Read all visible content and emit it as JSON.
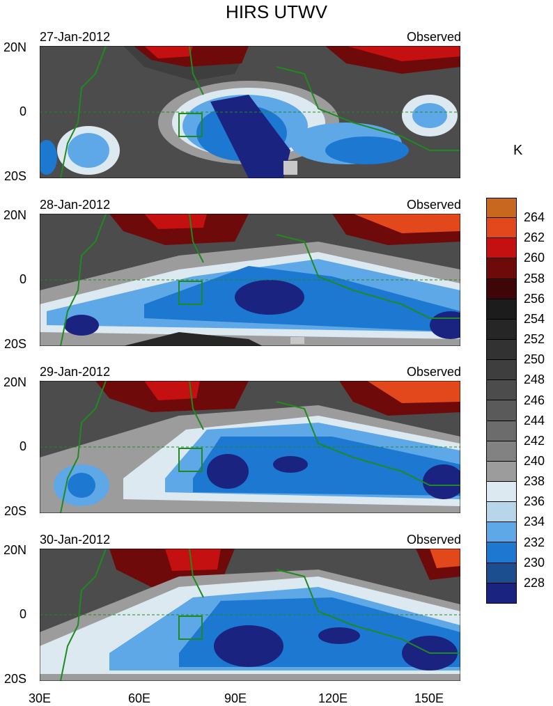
{
  "title": "HIRS UTWV",
  "unit": "K",
  "panels": [
    {
      "date": "27-Jan-2012",
      "label": "Observed"
    },
    {
      "date": "28-Jan-2012",
      "label": "Observed"
    },
    {
      "date": "29-Jan-2012",
      "label": "Observed"
    },
    {
      "date": "30-Jan-2012",
      "label": "Observed"
    }
  ],
  "lat_labels": [
    "20N",
    "0",
    "20S"
  ],
  "lon_labels": [
    "30E",
    "60E",
    "90E",
    "120E",
    "150E"
  ],
  "colorbar": {
    "levels": [
      "264",
      "262",
      "260",
      "258",
      "256",
      "254",
      "252",
      "250",
      "248",
      "246",
      "244",
      "242",
      "240",
      "238",
      "236",
      "234",
      "232",
      "230",
      "228"
    ],
    "colors": [
      "#c8681e",
      "#e2481c",
      "#c41010",
      "#6e0a0a",
      "#3e0606",
      "#1c1c1c",
      "#262626",
      "#323232",
      "#3e3e3e",
      "#4c4c4c",
      "#5a5a5a",
      "#6c6c6c",
      "#828282",
      "#9c9c9c",
      "#dde9f0",
      "#b8d6ea",
      "#5ea8e8",
      "#1c78d0",
      "#1a4e8e",
      "#1a2480"
    ]
  }
}
